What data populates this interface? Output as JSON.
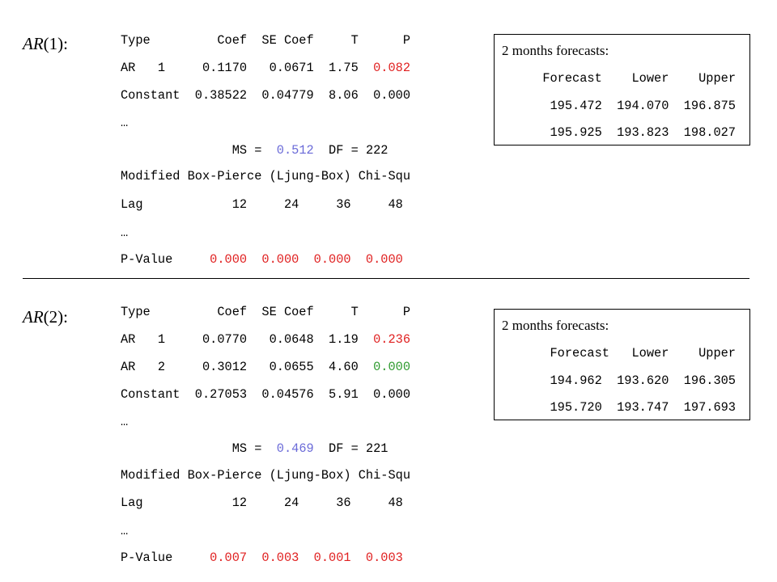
{
  "colors": {
    "red": "#e02020",
    "green": "#2e9a2e",
    "blue": "#6a6ad8"
  },
  "ar1": {
    "label_prefix": "AR",
    "label_suffix": "(1):",
    "table": {
      "header": "Type         Coef  SE Coef     T      P",
      "row1_main": "AR   1     0.1170   0.0671  1.75  ",
      "row1_p": "0.082",
      "row2": "Constant  0.38522  0.04779  8.06  0.000"
    },
    "ellipsis1": "…",
    "ms_prefix": "               MS =  ",
    "ms_value": "0.512",
    "ms_suffix": "  DF = 222",
    "boxpierce": "Modified Box-Pierce (Ljung-Box) Chi-Squ",
    "lag": "Lag            12     24     36     48",
    "ellipsis2": "…",
    "pvalue_label": "P-Value     ",
    "pvalues": "0.000  0.000  0.000  0.000",
    "forecast": {
      "title": "2 months forecasts:",
      "header": "Forecast    Lower    Upper",
      "rows": [
        "195.472  194.070  196.875",
        "195.925  193.823  198.027"
      ]
    }
  },
  "ar2": {
    "label_prefix": "AR",
    "label_suffix": "(2):",
    "table": {
      "header": "Type         Coef  SE Coef     T      P",
      "row1_main": "AR   1     0.0770   0.0648  1.19  ",
      "row1_p": "0.236",
      "row2_main": "AR   2     0.3012   0.0655  4.60  ",
      "row2_p": "0.000",
      "row3": "Constant  0.27053  0.04576  5.91  0.000"
    },
    "ellipsis1": "…",
    "ms_prefix": "               MS =  ",
    "ms_value": "0.469",
    "ms_suffix": "  DF = 221",
    "boxpierce": "Modified Box-Pierce (Ljung-Box) Chi-Squ",
    "lag": "Lag            12     24     36     48",
    "ellipsis2": "…",
    "pvalue_label": "P-Value     ",
    "pvalues": "0.007  0.003  0.001  0.003",
    "forecast": {
      "title": "2 months forecasts:",
      "header": "Forecast   Lower    Upper",
      "rows": [
        "194.962  193.620  196.305",
        "195.720  193.747  197.693"
      ]
    }
  }
}
